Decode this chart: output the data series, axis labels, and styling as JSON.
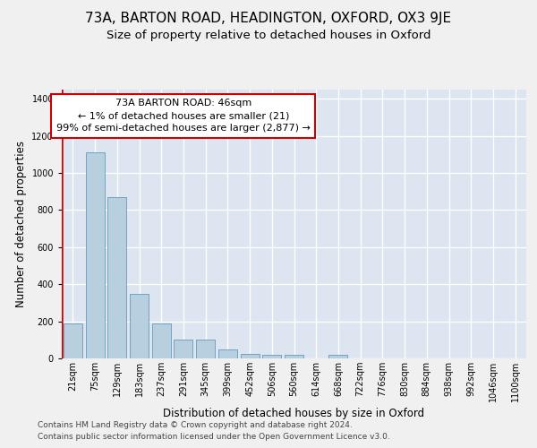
{
  "title_line1": "73A, BARTON ROAD, HEADINGTON, OXFORD, OX3 9JE",
  "title_line2": "Size of property relative to detached houses in Oxford",
  "xlabel": "Distribution of detached houses by size in Oxford",
  "ylabel": "Number of detached properties",
  "categories": [
    "21sqm",
    "75sqm",
    "129sqm",
    "183sqm",
    "237sqm",
    "291sqm",
    "345sqm",
    "399sqm",
    "452sqm",
    "506sqm",
    "560sqm",
    "614sqm",
    "668sqm",
    "722sqm",
    "776sqm",
    "830sqm",
    "884sqm",
    "938sqm",
    "992sqm",
    "1046sqm",
    "1100sqm"
  ],
  "values": [
    190,
    1110,
    870,
    350,
    190,
    100,
    100,
    50,
    22,
    20,
    20,
    0,
    20,
    0,
    0,
    0,
    0,
    0,
    0,
    0,
    0
  ],
  "bar_color": "#b8cfe0",
  "bar_edge_color": "#6699bb",
  "highlight_color": "#cc0000",
  "annotation_text": "73A BARTON ROAD: 46sqm\n← 1% of detached houses are smaller (21)\n99% of semi-detached houses are larger (2,877) →",
  "annotation_box_facecolor": "#ffffff",
  "annotation_box_edgecolor": "#cc0000",
  "ylim": [
    0,
    1450
  ],
  "yticks": [
    0,
    200,
    400,
    600,
    800,
    1000,
    1200,
    1400
  ],
  "plot_bg_color": "#dde6f0",
  "fig_bg_color": "#f0f0f0",
  "footer_line1": "Contains HM Land Registry data © Crown copyright and database right 2024.",
  "footer_line2": "Contains public sector information licensed under the Open Government Licence v3.0.",
  "grid_color": "#ffffff",
  "title_fontsize": 11,
  "subtitle_fontsize": 9.5,
  "axis_label_fontsize": 8.5,
  "tick_fontsize": 7,
  "footer_fontsize": 6.5,
  "annotation_fontsize": 8
}
